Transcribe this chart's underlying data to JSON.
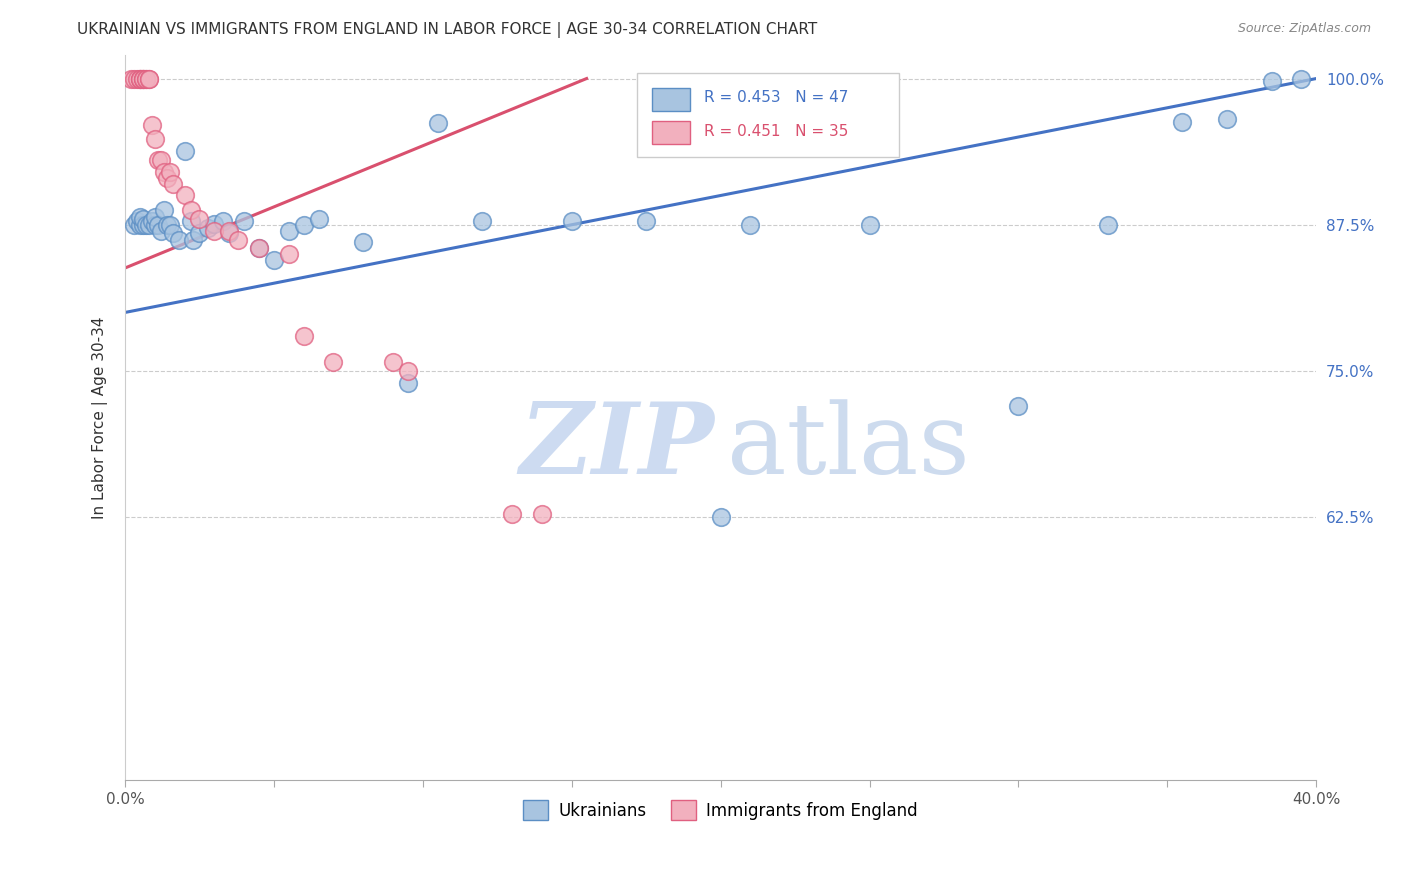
{
  "title": "UKRAINIAN VS IMMIGRANTS FROM ENGLAND IN LABOR FORCE | AGE 30-34 CORRELATION CHART",
  "source": "Source: ZipAtlas.com",
  "ylabel": "In Labor Force | Age 30-34",
  "xmin": 0.0,
  "xmax": 0.4,
  "ymin": 0.4,
  "ymax": 1.02,
  "ytick_positions": [
    0.625,
    0.75,
    0.875,
    1.0
  ],
  "ytick_labels": [
    "62.5%",
    "75.0%",
    "87.5%",
    "100.0%"
  ],
  "xtick_positions": [
    0.0,
    0.05,
    0.1,
    0.15,
    0.2,
    0.25,
    0.3,
    0.35,
    0.4
  ],
  "xtick_labels": [
    "0.0%",
    "",
    "",
    "",
    "",
    "",
    "",
    "",
    "40.0%"
  ],
  "blue_color": "#a8c4e0",
  "pink_color": "#f2b0be",
  "blue_edge_color": "#5b8ec4",
  "pink_edge_color": "#e06080",
  "blue_line_color": "#4472c4",
  "pink_line_color": "#d9506e",
  "watermark_zip_color": "#c5d8f0",
  "watermark_atlas_color": "#b8cce8",
  "legend_r_blue": "R = 0.453",
  "legend_n_blue": "N = 47",
  "legend_r_pink": "R = 0.451",
  "legend_n_pink": "N = 35",
  "blue_scatter_x": [
    0.003,
    0.004,
    0.005,
    0.005,
    0.006,
    0.006,
    0.007,
    0.008,
    0.009,
    0.01,
    0.01,
    0.011,
    0.012,
    0.013,
    0.014,
    0.015,
    0.016,
    0.018,
    0.02,
    0.022,
    0.023,
    0.025,
    0.028,
    0.03,
    0.033,
    0.035,
    0.04,
    0.045,
    0.05,
    0.055,
    0.06,
    0.065,
    0.08,
    0.095,
    0.105,
    0.12,
    0.15,
    0.175,
    0.2,
    0.21,
    0.25,
    0.3,
    0.33,
    0.355,
    0.37,
    0.385,
    0.395
  ],
  "blue_scatter_y": [
    0.875,
    0.878,
    0.875,
    0.882,
    0.875,
    0.88,
    0.875,
    0.875,
    0.878,
    0.875,
    0.882,
    0.875,
    0.87,
    0.888,
    0.875,
    0.875,
    0.868,
    0.862,
    0.938,
    0.878,
    0.862,
    0.868,
    0.872,
    0.876,
    0.878,
    0.868,
    0.878,
    0.855,
    0.845,
    0.87,
    0.875,
    0.88,
    0.86,
    0.74,
    0.962,
    0.878,
    0.878,
    0.878,
    0.625,
    0.875,
    0.875,
    0.72,
    0.875,
    0.963,
    0.965,
    0.998,
    1.0
  ],
  "pink_scatter_x": [
    0.002,
    0.003,
    0.004,
    0.005,
    0.005,
    0.005,
    0.006,
    0.006,
    0.006,
    0.007,
    0.007,
    0.008,
    0.008,
    0.009,
    0.01,
    0.011,
    0.012,
    0.013,
    0.014,
    0.015,
    0.016,
    0.02,
    0.022,
    0.025,
    0.03,
    0.035,
    0.038,
    0.045,
    0.055,
    0.06,
    0.07,
    0.09,
    0.095,
    0.13,
    0.14
  ],
  "pink_scatter_y": [
    1.0,
    1.0,
    1.0,
    1.0,
    1.0,
    1.0,
    1.0,
    1.0,
    1.0,
    1.0,
    1.0,
    1.0,
    1.0,
    0.96,
    0.948,
    0.93,
    0.93,
    0.92,
    0.915,
    0.92,
    0.91,
    0.9,
    0.888,
    0.88,
    0.87,
    0.87,
    0.862,
    0.855,
    0.85,
    0.78,
    0.758,
    0.758,
    0.75,
    0.628,
    0.628
  ],
  "blue_line_x": [
    0.0,
    0.4
  ],
  "blue_line_y": [
    0.8,
    1.0
  ],
  "pink_line_x": [
    0.0,
    0.155
  ],
  "pink_line_y": [
    0.838,
    1.0
  ],
  "grid_color": "#cccccc",
  "grid_style": "--"
}
